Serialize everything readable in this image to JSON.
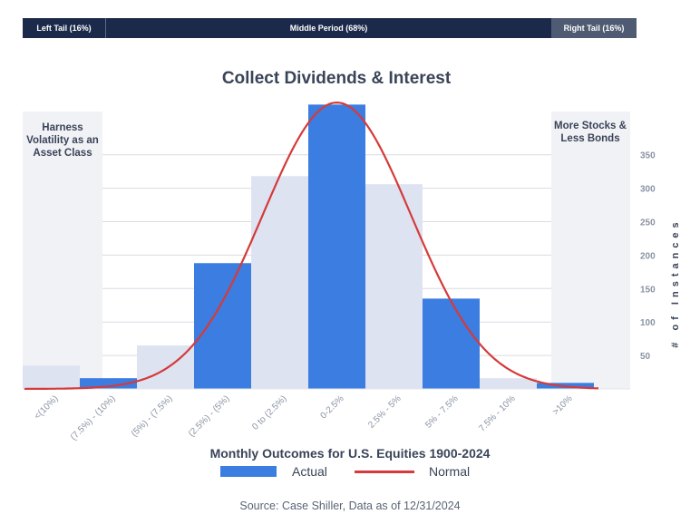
{
  "periods": {
    "left": "Left Tail (16%)",
    "middle": "Middle Period (68%)",
    "right": "Right Tail (16%)"
  },
  "panels": {
    "left": "Harness Volatility as an Asset Class",
    "right": "More Stocks & Less Bonds"
  },
  "source": "Source: Case Shiller, Data as of 12/31/2024",
  "colors": {
    "actual": "#3b7de0",
    "highlight_band": "#dde3f1",
    "normal": "#d63a3a",
    "navy": "#1b2a4a"
  },
  "chart_data": {
    "type": "bar",
    "title": "Collect Dividends & Interest",
    "xlabel": "Monthly Outcomes for U.S. Equities 1900-2024",
    "ylabel": "# of Instances",
    "categories": [
      "<(10%)",
      "(7.5%) - (10%)",
      "(5%) - (7.5%)",
      "(2.5%) - (5%)",
      "0 to (2.5%)",
      "0-2.5%",
      "2.5% - 5%",
      "5% - 7.5%",
      "7.5% - 10%",
      ">10%"
    ],
    "series": [
      {
        "name": "Actual",
        "values": [
          0,
          16,
          0,
          188,
          0,
          425,
          0,
          135,
          0,
          9
        ]
      }
    ],
    "background_band_values": [
      35,
      16,
      65,
      0,
      318,
      0,
      306,
      0,
      16,
      9
    ],
    "normal_curve": {
      "name": "Normal",
      "mean_category": 5,
      "peak": 428,
      "sd_categories": 1.3
    },
    "yticks": [
      50,
      100,
      150,
      200,
      250,
      300,
      350
    ],
    "ylim": [
      0,
      430
    ],
    "grid": true,
    "y_axis_side": "right",
    "legend": "bottom"
  }
}
